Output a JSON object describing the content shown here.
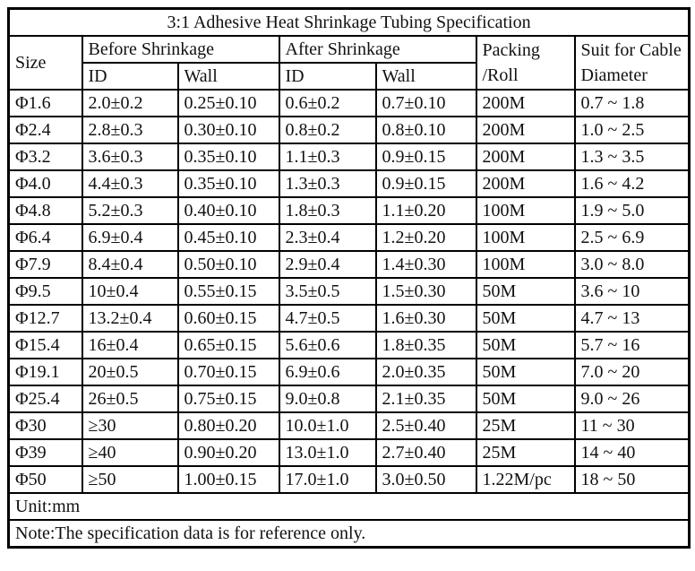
{
  "title": "3:1 Adhesive Heat Shrinkage Tubing Specification",
  "colors": {
    "header_bg": "#d8e2f0",
    "border": "#000000",
    "cell_bg": "#ffffff",
    "text": "#111111"
  },
  "table": {
    "header": {
      "size": "Size",
      "before": "Before Shrinkage",
      "after": "After Shrinkage",
      "before_id": "ID",
      "before_wall": "Wall",
      "after_id": "ID",
      "after_wall": "Wall",
      "packing": [
        "Packing",
        "/Roll"
      ],
      "cable": [
        "Suit for Cable",
        "Diameter"
      ]
    },
    "rows": [
      {
        "size": "Φ1.6",
        "before_id": "2.0±0.2",
        "before_wall": "0.25±0.10",
        "after_id": "0.6±0.2",
        "after_wall": "0.7±0.10",
        "packing": "200M",
        "cable": "0.7 ~ 1.8"
      },
      {
        "size": "Φ2.4",
        "before_id": "2.8±0.3",
        "before_wall": "0.30±0.10",
        "after_id": "0.8±0.2",
        "after_wall": "0.8±0.10",
        "packing": "200M",
        "cable": "1.0 ~ 2.5"
      },
      {
        "size": "Φ3.2",
        "before_id": "3.6±0.3",
        "before_wall": "0.35±0.10",
        "after_id": "1.1±0.3",
        "after_wall": "0.9±0.15",
        "packing": "200M",
        "cable": "1.3 ~ 3.5"
      },
      {
        "size": "Φ4.0",
        "before_id": "4.4±0.3",
        "before_wall": "0.35±0.10",
        "after_id": "1.3±0.3",
        "after_wall": "0.9±0.15",
        "packing": "200M",
        "cable": "1.6 ~ 4.2"
      },
      {
        "size": "Φ4.8",
        "before_id": "5.2±0.3",
        "before_wall": "0.40±0.10",
        "after_id": "1.8±0.3",
        "after_wall": "1.1±0.20",
        "packing": "100M",
        "cable": "1.9 ~ 5.0"
      },
      {
        "size": "Φ6.4",
        "before_id": "6.9±0.4",
        "before_wall": "0.45±0.10",
        "after_id": "2.3±0.4",
        "after_wall": "1.2±0.20",
        "packing": "100M",
        "cable": "2.5 ~ 6.9"
      },
      {
        "size": "Φ7.9",
        "before_id": "8.4±0.4",
        "before_wall": "0.50±0.10",
        "after_id": "2.9±0.4",
        "after_wall": "1.4±0.30",
        "packing": "100M",
        "cable": "3.0 ~ 8.0"
      },
      {
        "size": "Φ9.5",
        "before_id": "10±0.4",
        "before_wall": "0.55±0.15",
        "after_id": "3.5±0.5",
        "after_wall": "1.5±0.30",
        "packing": "50M",
        "cable": "3.6 ~ 10"
      },
      {
        "size": "Φ12.7",
        "before_id": "13.2±0.4",
        "before_wall": "0.60±0.15",
        "after_id": "4.7±0.5",
        "after_wall": "1.6±0.30",
        "packing": "50M",
        "cable": "4.7 ~ 13"
      },
      {
        "size": "Φ15.4",
        "before_id": "16±0.4",
        "before_wall": "0.65±0.15",
        "after_id": "5.6±0.6",
        "after_wall": "1.8±0.35",
        "packing": "50M",
        "cable": "5.7 ~ 16"
      },
      {
        "size": "Φ19.1",
        "before_id": "20±0.5",
        "before_wall": "0.70±0.15",
        "after_id": "6.9±0.6",
        "after_wall": "2.0±0.35",
        "packing": "50M",
        "cable": "7.0 ~ 20"
      },
      {
        "size": "Φ25.4",
        "before_id": "26±0.5",
        "before_wall": "0.75±0.15",
        "after_id": "9.0±0.8",
        "after_wall": "2.1±0.35",
        "packing": "50M",
        "cable": "9.0 ~ 26"
      },
      {
        "size": "Φ30",
        "before_id": "≥30",
        "before_wall": "0.80±0.20",
        "after_id": "10.0±1.0",
        "after_wall": "2.5±0.40",
        "packing": "25M",
        "cable": "11 ~ 30"
      },
      {
        "size": "Φ39",
        "before_id": "≥40",
        "before_wall": "0.90±0.20",
        "after_id": "13.0±1.0",
        "after_wall": "2.7±0.40",
        "packing": "25M",
        "cable": "14 ~ 40"
      },
      {
        "size": "Φ50",
        "before_id": "≥50",
        "before_wall": "1.00±0.15",
        "after_id": "17.0±1.0",
        "after_wall": "3.0±0.50",
        "packing": "1.22M/pc",
        "cable": "18 ~ 50"
      }
    ],
    "footer": {
      "unit": "Unit:mm",
      "note": "Note:The specification data is for reference only."
    }
  }
}
